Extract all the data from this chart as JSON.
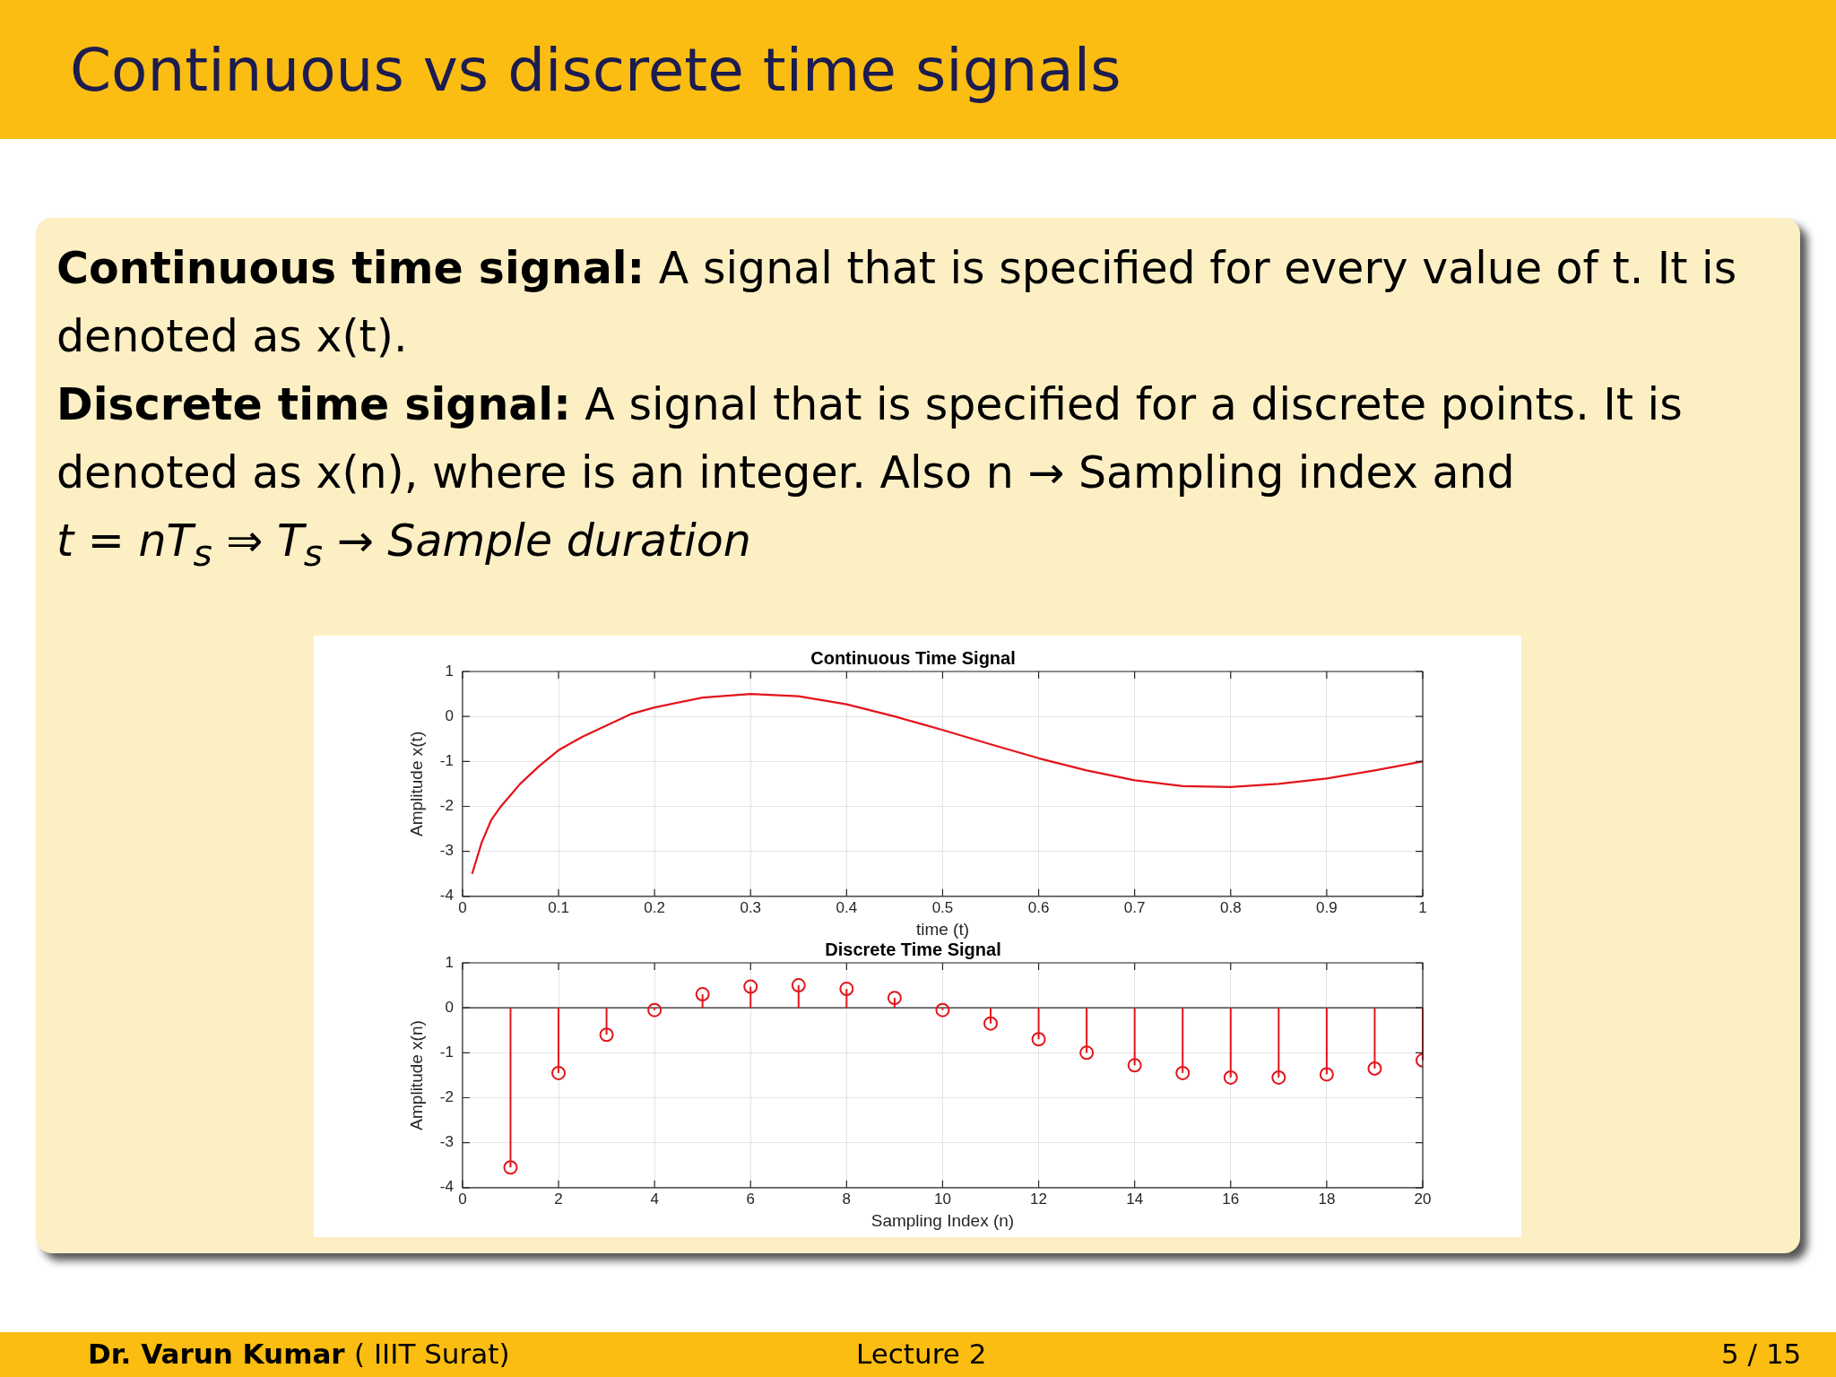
{
  "chart_data": [
    {
      "type": "line",
      "title": "Continuous Time Signal",
      "xlabel": "time (t)",
      "ylabel": "Amplitude x(t)",
      "color": "#e3141b",
      "x": [
        0.01,
        0.02,
        0.03,
        0.04,
        0.05,
        0.06,
        0.08,
        0.1,
        0.125,
        0.15,
        0.175,
        0.2,
        0.25,
        0.3,
        0.35,
        0.4,
        0.45,
        0.5,
        0.55,
        0.6,
        0.65,
        0.7,
        0.75,
        0.8,
        0.85,
        0.9,
        0.95,
        1.0
      ],
      "values": [
        -3.5,
        -2.8,
        -2.3,
        -2.0,
        -1.75,
        -1.5,
        -1.1,
        -0.75,
        -0.45,
        -0.2,
        0.05,
        0.2,
        0.42,
        0.5,
        0.45,
        0.27,
        0.0,
        -0.3,
        -0.62,
        -0.93,
        -1.2,
        -1.42,
        -1.55,
        -1.57,
        -1.5,
        -1.38,
        -1.2,
        -1.0
      ],
      "xlim": [
        0,
        1
      ],
      "xticks": [
        0,
        0.1,
        0.2,
        0.3,
        0.4,
        0.5,
        0.6,
        0.7,
        0.8,
        0.9,
        1
      ],
      "ylim": [
        -4,
        1
      ],
      "yticks": [
        -4,
        -3,
        -2,
        -1,
        0,
        1
      ],
      "grid": true,
      "annotations": [
        "Continuous vs discrete time signals",
        "Continuous time signal:",
        "A signal that is specified for every value of t. It is denoted as x(t).",
        "Discrete time signal:",
        "A signal that is specified for a discrete points. It is denoted as x(n), where is an integer. Also n → Sampling index and",
        "t = nT$_{s}$ ⇒ T$_{s}$ → Sample duration"
      ]
    },
    {
      "type": "lollipop",
      "title": "Discrete Time Signal",
      "xlabel": "Sampling Index (n)",
      "ylabel": "Amplitude x(n)",
      "color": "#e3141b",
      "marker": "circle",
      "x": [
        1,
        2,
        3,
        4,
        5,
        6,
        7,
        8,
        9,
        10,
        11,
        12,
        13,
        14,
        15,
        16,
        17,
        18,
        19,
        20
      ],
      "values": [
        -3.55,
        -1.45,
        -0.6,
        -0.05,
        0.3,
        0.47,
        0.5,
        0.42,
        0.22,
        -0.05,
        -0.35,
        -0.7,
        -1.0,
        -1.28,
        -1.45,
        -1.55,
        -1.55,
        -1.48,
        -1.35,
        -1.17
      ],
      "xlim": [
        0,
        20
      ],
      "xticks": [
        0,
        2,
        4,
        6,
        8,
        10,
        12,
        14,
        16,
        18,
        20
      ],
      "ylim": [
        -4,
        1
      ],
      "yticks": [
        -4,
        -3,
        -2,
        -1,
        0,
        1
      ],
      "grid": true,
      "annotations": [
        "Dr. Varun Kumar",
        "( IIIT Surat)",
        "Lecture 2",
        "5 / 15"
      ]
    }
  ]
}
